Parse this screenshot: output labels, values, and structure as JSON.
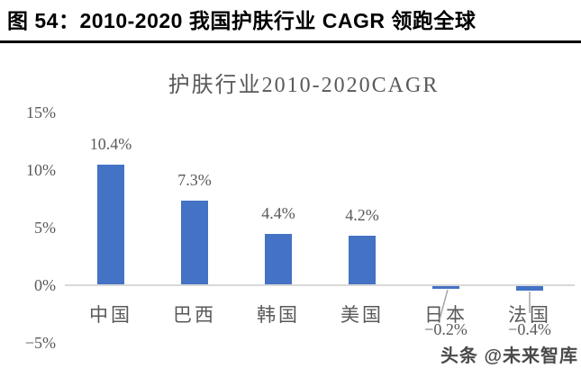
{
  "header": {
    "title": "图 54：2010-2020 我国护肤行业 CAGR 领跑全球"
  },
  "watermark": "头条 @未来智库",
  "chart_data": {
    "type": "bar",
    "title": "护肤行业2010-2020CAGR",
    "categories": [
      "中国",
      "巴西",
      "韩国",
      "美国",
      "日本",
      "法国"
    ],
    "category_names": [
      "china",
      "brazil",
      "korea",
      "usa",
      "japan",
      "france"
    ],
    "values": [
      10.4,
      7.3,
      4.4,
      4.2,
      -0.2,
      -0.4
    ],
    "data_labels": [
      "10.4%",
      "7.3%",
      "4.4%",
      "4.2%",
      "−0.2%",
      "−0.4%"
    ],
    "y_tick_labels": [
      "15%",
      "10%",
      "5%",
      "0%",
      "−5%"
    ],
    "y_tick_values": [
      15,
      10,
      5,
      0,
      -5
    ],
    "ylim": [
      -5,
      15
    ],
    "xlabel": "",
    "ylabel": "",
    "grid": false,
    "legend": false,
    "bar_color": "#4472C4",
    "axis_line_color": "#D9D9D9",
    "text_color": "#595959"
  }
}
